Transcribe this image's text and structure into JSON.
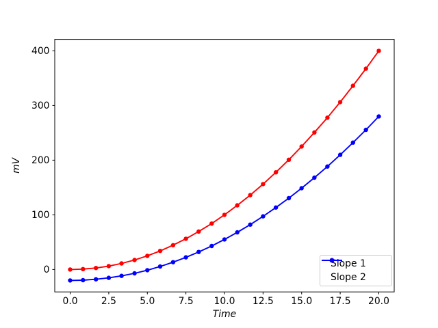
{
  "figure": {
    "background": "#ffffff"
  },
  "chart_data": {
    "type": "line",
    "title": "",
    "xlabel": "Time",
    "ylabel": "mV",
    "grid": false,
    "xlim": [
      -1,
      21
    ],
    "ylim": [
      -41,
      421
    ],
    "xticks": [
      0,
      2.5,
      5,
      7.5,
      10,
      12.5,
      15,
      17.5,
      20
    ],
    "xtick_labels": [
      "0.0",
      "2.5",
      "5.0",
      "7.5",
      "10.0",
      "12.5",
      "15.0",
      "17.5",
      "20.0"
    ],
    "yticks": [
      0,
      100,
      200,
      300,
      400
    ],
    "ytick_labels": [
      "0",
      "100",
      "200",
      "300",
      "400"
    ],
    "x": [
      0,
      0.83,
      1.67,
      2.5,
      3.33,
      4.17,
      5,
      5.83,
      6.67,
      7.5,
      8.33,
      9.17,
      10,
      10.83,
      11.67,
      12.5,
      13.33,
      14.17,
      15,
      15.83,
      16.67,
      17.5,
      18.33,
      19.17,
      20
    ],
    "series": [
      {
        "name": "Slope 1",
        "color": "#ff0000",
        "marker": "circle",
        "values": [
          0,
          0.69,
          2.78,
          6.25,
          11.11,
          17.36,
          25,
          34.03,
          44.44,
          56.25,
          69.44,
          84.03,
          100,
          117.36,
          136.11,
          156.25,
          177.78,
          200.69,
          225,
          250.69,
          277.78,
          306.25,
          336.11,
          367.36,
          400
        ]
      },
      {
        "name": "Slope 2",
        "color": "#0000ff",
        "marker": "circle",
        "values": [
          -20,
          -19.48,
          -17.92,
          -15.31,
          -11.67,
          -6.98,
          -1.25,
          5.52,
          13.33,
          22.19,
          32.08,
          43.02,
          55,
          68.02,
          82.08,
          97.19,
          113.33,
          130.52,
          148.75,
          168.02,
          188.33,
          209.69,
          232.08,
          255.52,
          280
        ]
      }
    ],
    "legend": {
      "position": "lower right"
    }
  }
}
